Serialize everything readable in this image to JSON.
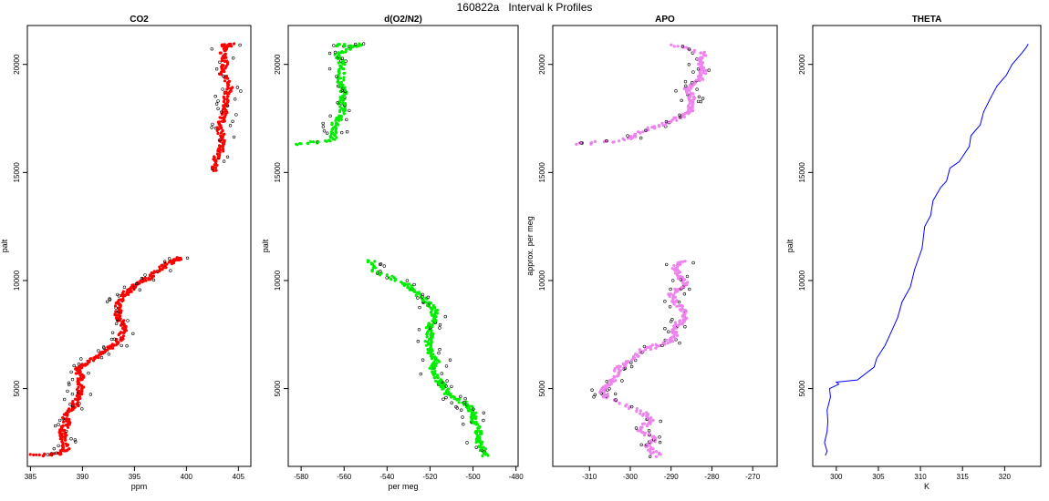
{
  "figure_title": "160822a   Interval k Profiles",
  "colors": {
    "co2": "#ff0000",
    "o2n2": "#00ee00",
    "apo": "#ee82ee",
    "theta": "#0000ff",
    "outline": "#000000"
  },
  "chart_data": [
    {
      "type": "scatter",
      "title": "CO2",
      "xlabel": "ppm",
      "ylabel": "palt",
      "xlim": [
        384.7,
        406.2
      ],
      "ylim": [
        1400,
        21800
      ],
      "xticks": [
        "385",
        "390",
        "395",
        "400",
        "405"
      ],
      "yticks": [
        "5000",
        "10000",
        "15000",
        "20000"
      ],
      "grid": false,
      "series": [
        {
          "color": "#ff0000",
          "segments": [
            [
              [
                385.3,
                1900
              ],
              [
                387.8,
                1950
              ],
              [
                388.4,
                2250
              ],
              [
                388.2,
                2700
              ],
              [
                388.0,
                3000
              ],
              [
                388.5,
                3400
              ],
              [
                388.3,
                3800
              ],
              [
                389.3,
                4200
              ],
              [
                389.5,
                4600
              ],
              [
                389.8,
                5000
              ],
              [
                389.9,
                5500
              ],
              [
                389.4,
                5900
              ],
              [
                390.6,
                6200
              ],
              [
                391.6,
                6600
              ],
              [
                392.8,
                6900
              ],
              [
                393.6,
                7300
              ],
              [
                394.0,
                7700
              ],
              [
                393.7,
                8100
              ],
              [
                393.4,
                8500
              ],
              [
                393.5,
                8900
              ],
              [
                393.9,
                9300
              ],
              [
                394.6,
                9600
              ],
              [
                395.4,
                9900
              ],
              [
                396.7,
                10200
              ],
              [
                397.6,
                10600
              ],
              [
                398.7,
                10900
              ],
              [
                399.5,
                11050
              ]
            ],
            [
              [
                402.6,
                15100
              ],
              [
                402.8,
                15600
              ],
              [
                403.4,
                16100
              ],
              [
                403.4,
                16600
              ],
              [
                403.2,
                17100
              ],
              [
                403.5,
                17600
              ],
              [
                403.8,
                18100
              ],
              [
                403.8,
                18600
              ],
              [
                404.3,
                19000
              ],
              [
                403.4,
                19600
              ],
              [
                403.7,
                20100
              ],
              [
                403.5,
                20600
              ],
              [
                403.7,
                20900
              ],
              [
                404.5,
                20900
              ]
            ]
          ]
        }
      ]
    },
    {
      "type": "scatter",
      "title": "d(O2/N2)",
      "xlabel": "per meg",
      "ylabel": "palt",
      "xlim": [
        -586,
        -479
      ],
      "ylim": [
        1400,
        21800
      ],
      "xticks": [
        "-580",
        "-560",
        "-540",
        "-520",
        "-500",
        "-480"
      ],
      "yticks": [
        "5000",
        "10000",
        "15000",
        "20000"
      ],
      "grid": false,
      "series": [
        {
          "color": "#00ee00",
          "segments": [
            [
              [
                -494,
                1900
              ],
              [
                -496,
                2300
              ],
              [
                -498,
                2700
              ],
              [
                -497,
                3100
              ],
              [
                -500,
                3500
              ],
              [
                -500,
                3900
              ],
              [
                -502,
                4200
              ],
              [
                -511,
                4700
              ],
              [
                -514,
                5100
              ],
              [
                -516,
                5400
              ],
              [
                -519,
                5900
              ],
              [
                -517,
                6300
              ],
              [
                -520,
                6700
              ],
              [
                -521,
                7100
              ],
              [
                -520,
                7500
              ],
              [
                -521,
                7800
              ],
              [
                -518,
                8200
              ],
              [
                -518,
                8600
              ],
              [
                -521,
                9000
              ],
              [
                -527,
                9500
              ],
              [
                -531,
                9800
              ],
              [
                -545,
                10400
              ],
              [
                -548,
                11000
              ]
            ],
            [
              [
                -583,
                16300
              ],
              [
                -565,
                16500
              ],
              [
                -565,
                16900
              ],
              [
                -564,
                17300
              ],
              [
                -561,
                17700
              ],
              [
                -561,
                18200
              ],
              [
                -560,
                18700
              ],
              [
                -562,
                19100
              ],
              [
                -561,
                19600
              ],
              [
                -561,
                20100
              ],
              [
                -563,
                20500
              ],
              [
                -553,
                20900
              ],
              [
                -565,
                20900
              ]
            ]
          ]
        }
      ]
    },
    {
      "type": "scatter",
      "title": "APO",
      "xlabel": "",
      "ylabel": "approx. per meg",
      "xlim": [
        -319,
        -264
      ],
      "ylim": [
        1400,
        21800
      ],
      "xticks": [
        "-310",
        "-300",
        "-290",
        "-280",
        "-270"
      ],
      "yticks": [
        "5000",
        "10000",
        "15000",
        "20000"
      ],
      "grid": false,
      "series": [
        {
          "color": "#ee82ee",
          "segments": [
            [
              [
                -293,
                1900
              ],
              [
                -296,
                2300
              ],
              [
                -294,
                2700
              ],
              [
                -298,
                3100
              ],
              [
                -295,
                3500
              ],
              [
                -297,
                3900
              ],
              [
                -306,
                4600
              ],
              [
                -307,
                5000
              ],
              [
                -304,
                5400
              ],
              [
                -303,
                5900
              ],
              [
                -300,
                6300
              ],
              [
                -297,
                6800
              ],
              [
                -291,
                7100
              ],
              [
                -289,
                7500
              ],
              [
                -289,
                7900
              ],
              [
                -287,
                8200
              ],
              [
                -287,
                8600
              ],
              [
                -289,
                9000
              ],
              [
                -290,
                9400
              ],
              [
                -286,
                9800
              ],
              [
                -288,
                10200
              ],
              [
                -289,
                10600
              ],
              [
                -287,
                10900
              ]
            ],
            [
              [
                -313,
                16300
              ],
              [
                -301,
                16500
              ],
              [
                -297,
                16900
              ],
              [
                -291,
                17300
              ],
              [
                -286,
                17700
              ],
              [
                -285,
                18100
              ],
              [
                -285,
                18500
              ],
              [
                -286,
                18900
              ],
              [
                -283,
                19300
              ],
              [
                -282,
                19700
              ],
              [
                -283,
                20100
              ],
              [
                -282,
                20500
              ],
              [
                -290,
                20900
              ]
            ]
          ]
        }
      ]
    },
    {
      "type": "line",
      "title": "THETA",
      "xlabel": "K",
      "ylabel": "palt",
      "xlim": [
        297.2,
        324.3
      ],
      "ylim": [
        1400,
        21800
      ],
      "xticks": [
        "300",
        "305",
        "310",
        "315",
        "320"
      ],
      "yticks": [
        "5000",
        "10000",
        "15000",
        "20000"
      ],
      "grid": false,
      "series": [
        {
          "color": "#0000ff",
          "points": [
            [
              298.7,
              1900
            ],
            [
              298.9,
              2100
            ],
            [
              298.6,
              2500
            ],
            [
              298.9,
              3000
            ],
            [
              299.0,
              3500
            ],
            [
              298.9,
              4000
            ],
            [
              299.3,
              4600
            ],
            [
              299.2,
              5000
            ],
            [
              300.3,
              5200
            ],
            [
              300.0,
              5300
            ],
            [
              302.5,
              5400
            ],
            [
              304.5,
              6000
            ],
            [
              304.8,
              6400
            ],
            [
              305.8,
              7000
            ],
            [
              306.5,
              7600
            ],
            [
              307.3,
              8300
            ],
            [
              307.8,
              9000
            ],
            [
              308.8,
              9700
            ],
            [
              309.3,
              10500
            ],
            [
              310.2,
              11500
            ],
            [
              310.5,
              12500
            ],
            [
              311.2,
              13000
            ],
            [
              311.5,
              13700
            ],
            [
              312.4,
              14300
            ],
            [
              313.1,
              14600
            ],
            [
              313.5,
              15200
            ],
            [
              314.6,
              15500
            ],
            [
              315.8,
              16200
            ],
            [
              316.0,
              16700
            ],
            [
              317.1,
              17200
            ],
            [
              317.5,
              17800
            ],
            [
              318.4,
              18500
            ],
            [
              319.1,
              19000
            ],
            [
              320.2,
              19500
            ],
            [
              320.9,
              20000
            ],
            [
              322.0,
              20500
            ],
            [
              322.6,
              20800
            ],
            [
              322.8,
              20950
            ]
          ]
        }
      ]
    }
  ]
}
